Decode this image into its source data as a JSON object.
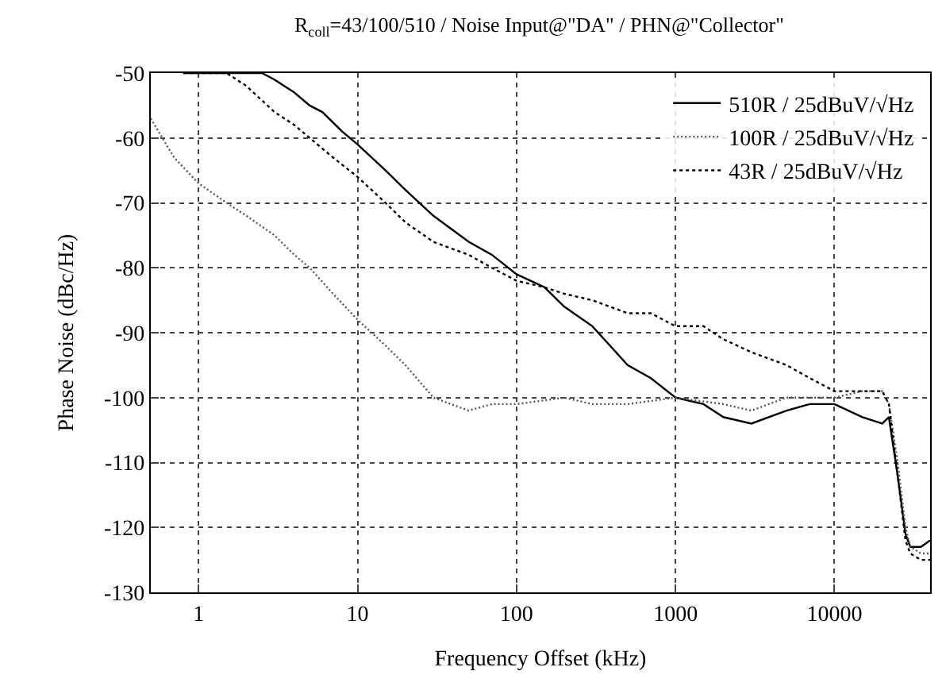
{
  "chart_data": {
    "type": "line",
    "title": "R$_{coll}$=43/100/510 / Noise Input@\"DA\" / PHN@\"Collector\"",
    "xlabel": "Frequency Offset (kHz)",
    "ylabel": "Phase Noise (dBc/Hz)",
    "log": "x",
    "xlim": [
      0.5,
      40000
    ],
    "xticks": [
      1,
      10,
      100,
      1000,
      10000
    ],
    "ylim": [
      -130,
      -50
    ],
    "yticks": [
      -130,
      -120,
      -110,
      -100,
      -90,
      -80,
      -70,
      -60,
      -50
    ],
    "grid": true,
    "legend": "top right",
    "marker": "none",
    "series": [
      {
        "name": "510R / 25dBuV/√Hz",
        "color": "#000000",
        "line_style": "solid",
        "x": [
          0.8,
          1.5,
          2.5,
          3,
          4,
          5,
          6,
          8,
          10,
          15,
          20,
          30,
          50,
          70,
          100,
          150,
          200,
          300,
          500,
          700,
          1000,
          1500,
          2000,
          3000,
          5000,
          7000,
          10000,
          15000,
          20000,
          22000,
          25000,
          28000,
          30000,
          35000,
          40000
        ],
        "values": [
          -50,
          -50,
          -50,
          -51,
          -53,
          -55,
          -56,
          -59,
          -61,
          -65,
          -68,
          -72,
          -76,
          -78,
          -81,
          -83,
          -86,
          -89,
          -95,
          -97,
          -100,
          -101,
          -103,
          -104,
          -102,
          -101,
          -101,
          -103,
          -104,
          -103,
          -112,
          -121,
          -123,
          -123,
          -122
        ]
      },
      {
        "name": "100R / 25dBuV/√Hz",
        "color": "#555555",
        "line_style": "dotted",
        "x": [
          0.5,
          0.7,
          1,
          1.5,
          2,
          3,
          4,
          5,
          7,
          10,
          15,
          20,
          30,
          50,
          70,
          100,
          200,
          300,
          500,
          1000,
          2000,
          3000,
          5000,
          10000,
          15000,
          20000,
          22000,
          25000,
          28000,
          30000,
          35000,
          40000
        ],
        "values": [
          -57,
          -63,
          -67,
          -70,
          -72,
          -75,
          -78,
          -80,
          -84,
          -88,
          -92,
          -95,
          -100,
          -102,
          -101,
          -101,
          -100,
          -101,
          -101,
          -100,
          -101,
          -102,
          -100,
          -100,
          -99,
          -99,
          -101,
          -110,
          -120,
          -123,
          -124,
          -124
        ]
      },
      {
        "name": "43R / 25dBuV/√Hz",
        "color": "#000000",
        "line_style": "dashed",
        "x": [
          0.8,
          1.5,
          2,
          3,
          4,
          5,
          7,
          10,
          15,
          20,
          30,
          50,
          70,
          100,
          150,
          200,
          300,
          500,
          700,
          1000,
          1500,
          2000,
          3000,
          5000,
          7000,
          10000,
          15000,
          20000,
          22000,
          25000,
          28000,
          30000,
          35000,
          40000
        ],
        "values": [
          -50,
          -50,
          -52,
          -56,
          -58,
          -60,
          -63,
          -66,
          -70,
          -73,
          -76,
          -78,
          -80,
          -82,
          -83,
          -84,
          -85,
          -87,
          -87,
          -89,
          -89,
          -91,
          -93,
          -95,
          -97,
          -99,
          -99,
          -99,
          -101,
          -112,
          -122,
          -124,
          -125,
          -125
        ]
      }
    ]
  }
}
